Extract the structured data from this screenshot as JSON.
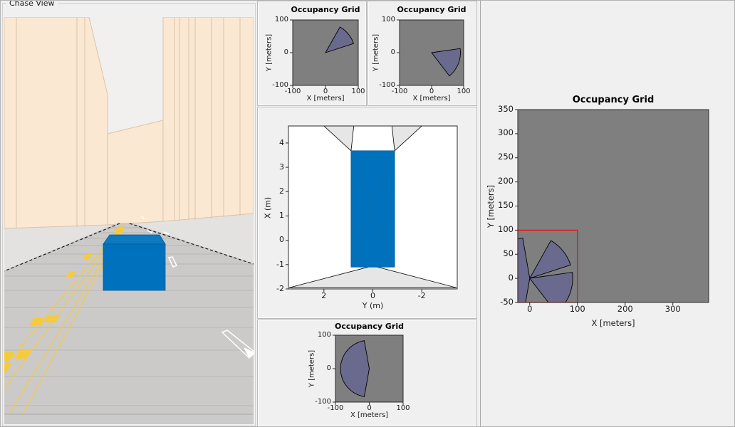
{
  "chase_view": {
    "label": "Chase View"
  },
  "colors": {
    "figure_bg": "#f0f0f0",
    "grid_bg": "#7f7f7f",
    "fan_fill": "#6a6a8e",
    "fan_outline": "#000000",
    "vehicle_blue": "#0072bd",
    "vehicle_blue_top": "#0d79c0",
    "vehicle_edge": "#005a94",
    "uncovered_gray": "#e6e6e6",
    "coverage_white": "#ffffff",
    "highlight_red": "#ff0000",
    "building": "#fbe8d2",
    "building_edge": "#d9c3ab",
    "sky": "#f1f0ee",
    "sidewalk": "#e3e2e0",
    "road": "#cbcac9",
    "road_band": "#b6b5b4",
    "lane_yellow": "#f6ca3d",
    "lane_white": "#ffffff",
    "axis_line": "#2b2b2b"
  },
  "chart_data": [
    {
      "id": "front-left-sensor-grid",
      "type": "occupancy-fan",
      "title": "Occupancy Grid",
      "xlabel": "X [meters]",
      "ylabel": "Y [meters]",
      "xlim": [
        -100,
        100
      ],
      "ylim": [
        -100,
        100
      ],
      "xticks": [
        -100,
        0,
        100
      ],
      "yticks": [
        100,
        0,
        -100
      ],
      "grid": false,
      "legend": "none",
      "fans": [
        {
          "origin": [
            0,
            0
          ],
          "radius": 90,
          "angle_start": 18,
          "angle_end": 62
        }
      ]
    },
    {
      "id": "front-right-sensor-grid",
      "type": "occupancy-fan",
      "title": "Occupancy Grid",
      "xlabel": "X [meters]",
      "ylabel": "Y [meters]",
      "xlim": [
        -100,
        100
      ],
      "ylim": [
        -100,
        100
      ],
      "xticks": [
        -100,
        0,
        100
      ],
      "yticks": [
        100,
        0,
        -100
      ],
      "grid": false,
      "legend": "none",
      "fans": [
        {
          "origin": [
            0,
            0
          ],
          "radius": 90,
          "angle_start": -52,
          "angle_end": 10
        }
      ]
    },
    {
      "id": "ego-vehicle-coverage",
      "type": "birds-eye",
      "title": "",
      "xlabel": "Y (m)",
      "ylabel": "X (m)",
      "xlim": [
        3.45,
        -3.45
      ],
      "ylim": [
        -2,
        4.7
      ],
      "xticks": [
        2,
        0,
        -2
      ],
      "yticks": [
        4,
        3,
        2,
        1,
        0,
        -1,
        -2
      ],
      "grid": false,
      "legend": "none",
      "vehicle": {
        "x": [
          0.89,
          -0.89
        ],
        "y": [
          -1.1,
          3.68
        ]
      },
      "uncovered_regions": [
        [
          [
            2.0,
            4.7
          ],
          [
            0.78,
            4.7
          ],
          [
            0.89,
            3.68
          ]
        ],
        [
          [
            -2.0,
            4.7
          ],
          [
            -0.78,
            4.7
          ],
          [
            -0.89,
            3.68
          ]
        ],
        [
          [
            0,
            -1.05
          ],
          [
            -3.42,
            -1.95
          ],
          [
            3.42,
            -1.95
          ]
        ]
      ]
    },
    {
      "id": "rear-sensor-grid",
      "type": "occupancy-fan",
      "title": "Occupancy Grid",
      "xlabel": "X [meters]",
      "ylabel": "Y [meters]",
      "xlim": [
        -100,
        100
      ],
      "ylim": [
        -100,
        100
      ],
      "xticks": [
        -100,
        0,
        100
      ],
      "yticks": [
        100,
        0,
        -100
      ],
      "grid": false,
      "legend": "none",
      "fans": [
        {
          "origin": [
            0,
            0
          ],
          "radius": 85,
          "angle_start": 100,
          "angle_end": 260
        }
      ]
    },
    {
      "id": "combined-occupancy-grid",
      "type": "occupancy-fan",
      "title": "Occupancy Grid",
      "xlabel": "X [meters]",
      "ylabel": "Y [meters]",
      "xlim": [
        -25,
        375
      ],
      "ylim": [
        -50,
        350
      ],
      "xticks": [
        0,
        100,
        200,
        300
      ],
      "yticks": [
        350,
        300,
        250,
        200,
        150,
        100,
        50,
        0,
        -50
      ],
      "grid": false,
      "legend": "none",
      "fans": [
        {
          "origin": [
            0,
            0
          ],
          "radius": 90,
          "angle_start": 18,
          "angle_end": 62
        },
        {
          "origin": [
            0,
            0
          ],
          "radius": 90,
          "angle_start": -52,
          "angle_end": 10
        },
        {
          "origin": [
            0,
            0
          ],
          "radius": 85,
          "angle_start": 100,
          "angle_end": 260
        }
      ],
      "highlight_rect": {
        "x": [
          -25,
          100
        ],
        "y": [
          -50,
          100
        ]
      }
    }
  ]
}
